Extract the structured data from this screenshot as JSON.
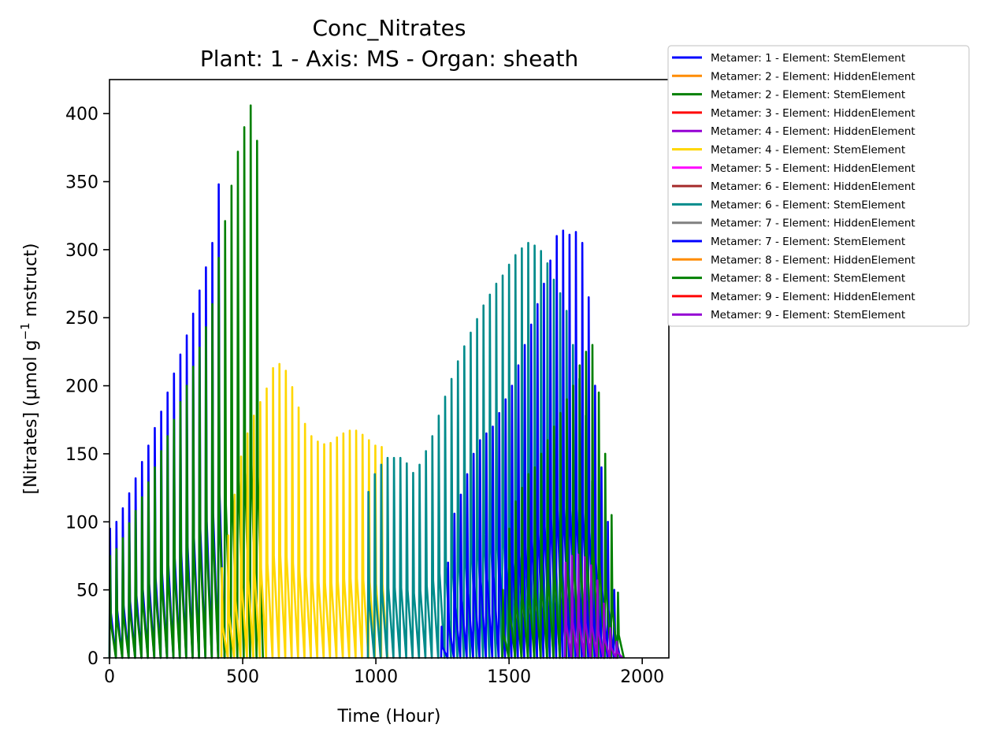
{
  "chart_data": {
    "type": "line",
    "title": "Conc_Nitrates",
    "subtitle": "Plant: 1 - Axis: MS - Organ: sheath",
    "xlabel": "Time (Hour)",
    "ylabel_main": "[Nitrates] (µmol g",
    "ylabel_sup": "−1",
    "ylabel_tail": " mstruct)",
    "xlim": [
      0,
      2100
    ],
    "ylim": [
      0,
      425
    ],
    "xticks": [
      0,
      500,
      1000,
      1500,
      2000
    ],
    "yticks": [
      0,
      50,
      100,
      150,
      200,
      250,
      300,
      350,
      400
    ],
    "legend_position": "outside-top-right",
    "grid": false,
    "cycle_hours": 24,
    "series": [
      {
        "name": "Metamer: 1 - Element: StemElement",
        "color": "#0000ff",
        "start": 0,
        "peaks": [
          95,
          100,
          110,
          121,
          132,
          144,
          156,
          169,
          181,
          195,
          209,
          223,
          237,
          253,
          270,
          287,
          305,
          348
        ]
      },
      {
        "name": "Metamer: 2 - Element: HiddenElement",
        "color": "#ff8c00",
        "start": 0,
        "peaks": []
      },
      {
        "name": "Metamer: 2 - Element: StemElement",
        "color": "#008000",
        "start": 0,
        "peaks": [
          75,
          80,
          88,
          99,
          108,
          118,
          129,
          140,
          152,
          163,
          175,
          188,
          200,
          214,
          228,
          243,
          260,
          294,
          321,
          347,
          372,
          390,
          406,
          380
        ]
      },
      {
        "name": "Metamer: 3 - Element: HiddenElement",
        "color": "#ff0000",
        "start": 0,
        "peaks": []
      },
      {
        "name": "Metamer: 4 - Element: HiddenElement",
        "color": "#9400d3",
        "start": 0,
        "peaks": []
      },
      {
        "name": "Metamer: 4 - Element: StemElement",
        "color": "#ffd700",
        "start": 420,
        "peaks": [
          66,
          90,
          120,
          148,
          165,
          178,
          188,
          198,
          213,
          216,
          211,
          199,
          184,
          172,
          163,
          159,
          157,
          158,
          162,
          165,
          167,
          167,
          164,
          160,
          156,
          155
        ]
      },
      {
        "name": "Metamer: 5 - Element: HiddenElement",
        "color": "#ff00ff",
        "start": 0,
        "peaks": []
      },
      {
        "name": "Metamer: 6 - Element: HiddenElement",
        "color": "#a52a2a",
        "start": 0,
        "peaks": []
      },
      {
        "name": "Metamer: 6 - Element: StemElement",
        "color": "#008b8b",
        "start": 970,
        "peaks": [
          122,
          135,
          142,
          147,
          147,
          147,
          143,
          136,
          142,
          152,
          163,
          178,
          192,
          205,
          218,
          229,
          239,
          249,
          259,
          267,
          275,
          281,
          289,
          296,
          301,
          305,
          303,
          299,
          290,
          278,
          268,
          255,
          230,
          205,
          178,
          130,
          60,
          17
        ]
      },
      {
        "name": "Metamer: 7 - Element: HiddenElement",
        "color": "#808080",
        "start": 0,
        "peaks": []
      },
      {
        "name": "Metamer: 7 - Element: StemElement",
        "color": "#0000ff",
        "start": 1245,
        "peaks": [
          23,
          70,
          106,
          120,
          135,
          150,
          160,
          165,
          170,
          180,
          190,
          200,
          215,
          230,
          245,
          260,
          275,
          292,
          310,
          314,
          311,
          313,
          305,
          265,
          200,
          140,
          100,
          50
        ]
      },
      {
        "name": "Metamer: 8 - Element: HiddenElement",
        "color": "#ff8c00",
        "start": 0,
        "peaks": []
      },
      {
        "name": "Metamer: 8 - Element: StemElement",
        "color": "#008000",
        "start": 1475,
        "peaks": [
          50,
          95,
          115,
          125,
          135,
          140,
          150,
          160,
          170,
          180,
          190,
          200,
          215,
          225,
          230,
          195,
          150,
          105,
          48
        ]
      },
      {
        "name": "Metamer: 9 - Element: HiddenElement",
        "color": "#ff0000",
        "start": 0,
        "peaks": []
      },
      {
        "name": "Metamer: 9 - Element: StemElement",
        "color": "#9400d3",
        "start": 1710,
        "peaks": [
          70,
          75,
          76,
          74,
          68,
          57,
          40,
          22,
          12
        ]
      }
    ]
  }
}
